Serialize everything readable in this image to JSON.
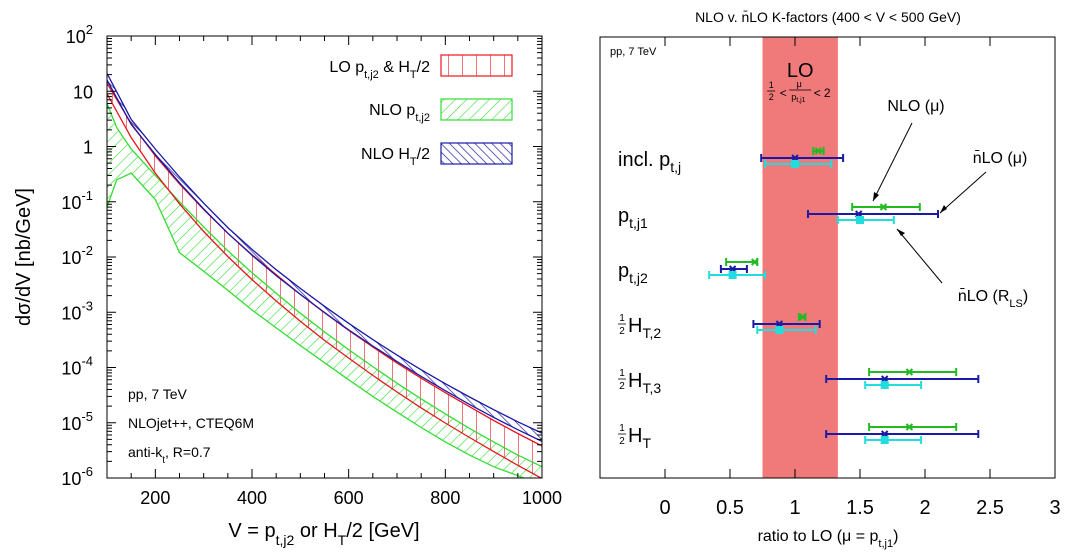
{
  "chart_data": [
    {
      "type": "line",
      "xlabel": "V = p",
      "xlabel_parts": [
        "V = p",
        "t,j2",
        " or H",
        "T",
        "/2 [GeV]"
      ],
      "ylabel": "dσ/dV [nb/GeV]",
      "xlim": [
        100,
        1000
      ],
      "ylim": [
        1e-06,
        100
      ],
      "y_log_scale": true,
      "x_ticks": [
        "200",
        "400",
        "600",
        "800",
        "1000"
      ],
      "y_ticks": [
        {
          "base": "10",
          "exp": "2"
        },
        {
          "base": "10",
          "exp": ""
        },
        {
          "base": "1",
          "exp": ""
        },
        {
          "base": "10",
          "exp": "-1"
        },
        {
          "base": "10",
          "exp": "-2"
        },
        {
          "base": "10",
          "exp": "-3"
        },
        {
          "base": "10",
          "exp": "-4"
        },
        {
          "base": "10",
          "exp": "-5"
        },
        {
          "base": "10",
          "exp": "-6"
        }
      ],
      "legend": [
        {
          "parts": [
            "LO p",
            "t,j2",
            " & H",
            "T",
            "/2"
          ],
          "color": "#e8161e"
        },
        {
          "parts": [
            "NLO p",
            "t,j2"
          ],
          "color": "#33dd33"
        },
        {
          "parts": [
            "NLO H",
            "T",
            "/2"
          ],
          "color": "#1a1aa6"
        }
      ],
      "annotations": [
        "pp, 7 TeV",
        "NLOjet++, CTEQ6M",
        "anti-k",
        "t",
        ", R=0.7"
      ],
      "series": [
        {
          "name": "LO p_t,j2 & H_T/2",
          "color": "#e8161e",
          "x": [
            100,
            150,
            200,
            250,
            300,
            350,
            400,
            450,
            500,
            550,
            600,
            650,
            700,
            750,
            800,
            850,
            900,
            950,
            1000
          ],
          "upper": [
            14,
            2.6,
            0.68,
            0.21,
            0.072,
            0.027,
            0.011,
            0.0048,
            0.0021,
            0.00098,
            0.00047,
            0.000235,
            0.00012,
            6.4e-05,
            3.5e-05,
            1.95e-05,
            1.1e-05,
            6.4e-06,
            3.8e-06
          ],
          "lower": [
            9,
            1.45,
            0.33,
            0.092,
            0.029,
            0.0102,
            0.0039,
            0.0016,
            0.00069,
            0.00031,
            0.000148,
            7.2e-05,
            3.6e-05,
            1.86e-05,
            9.9e-06,
            5.4e-06,
            3e-06,
            1.7e-06,
            9.8e-07
          ]
        },
        {
          "name": "NLO p_t,j2",
          "color": "#33dd33",
          "x": [
            100,
            120,
            150,
            200,
            250,
            300,
            350,
            400,
            450,
            500,
            550,
            600,
            650,
            700,
            750,
            800,
            850,
            900,
            950,
            1000
          ],
          "upper": [
            6,
            2.2,
            0.9,
            0.3,
            0.1,
            0.035,
            0.013,
            0.0052,
            0.0022,
            0.00096,
            0.00044,
            0.00021,
            0.000104,
            5.2e-05,
            2.7e-05,
            1.45e-05,
            7.9e-06,
            4.5e-06,
            2.6e-06,
            1.6e-06
          ],
          "lower": [
            0.08,
            0.25,
            0.33,
            0.11,
            0.012,
            0.0055,
            0.0025,
            0.0011,
            0.00052,
            0.00025,
            0.000122,
            6e-05,
            3e-05,
            1.55e-05,
            8.2e-06,
            4.5e-06,
            2.6e-06,
            1.6e-06,
            1.1e-06,
            7.5e-07
          ]
        },
        {
          "name": "NLO H_T/2",
          "color": "#1a1aa6",
          "x": [
            100,
            150,
            200,
            250,
            300,
            350,
            400,
            450,
            500,
            550,
            600,
            650,
            700,
            750,
            800,
            850,
            900,
            950,
            1000
          ],
          "upper": [
            21,
            3.1,
            0.9,
            0.28,
            0.094,
            0.034,
            0.0137,
            0.0059,
            0.0027,
            0.00128,
            0.00063,
            0.00032,
            0.000168,
            9.1e-05,
            5.1e-05,
            2.92e-05,
            1.72e-05,
            1.04e-05,
            6.5e-06
          ],
          "lower": [
            16,
            2.5,
            0.72,
            0.22,
            0.074,
            0.027,
            0.0108,
            0.0046,
            0.0021,
            0.00099,
            0.00048,
            0.000245,
            0.000128,
            6.9e-05,
            3.8e-05,
            2.15e-05,
            1.25e-05,
            7.5e-06,
            4.6e-06
          ]
        }
      ]
    },
    {
      "type": "scatter",
      "title": "NLO v. n̄LO K-factors (400 < V < 500 GeV)",
      "xlabel": "ratio to LO (μ = p",
      "xlabel_parts": [
        "ratio to LO (μ = p",
        "t,j1",
        ")"
      ],
      "xlim": [
        -0.5,
        3
      ],
      "x_ticks": [
        0,
        0.5,
        1,
        1.5,
        2,
        2.5,
        3
      ],
      "x_tick_labels": [
        "0",
        "0.5",
        "1",
        "1.5",
        "2",
        "2.5",
        "3"
      ],
      "band": {
        "label": "LO",
        "range": [
          0.75,
          1.33
        ],
        "color": "#f07a7a",
        "scale_text": [
          "1",
          "2",
          "μ",
          "p",
          "t,j1",
          "2"
        ]
      },
      "corner_label": "pp, 7 TeV",
      "observables": [
        {
          "main": "incl. p",
          "sub": "t,j",
          "frac": ""
        },
        {
          "main": "p",
          "sub": "t,j1",
          "frac": ""
        },
        {
          "main": "p",
          "sub": "t,j2",
          "frac": ""
        },
        {
          "main": "H",
          "sub": "T,2",
          "frac": "1/2"
        },
        {
          "main": "H",
          "sub": "T,3",
          "frac": "1/2"
        },
        {
          "main": "H",
          "sub": "T",
          "frac": "1/2"
        }
      ],
      "series": [
        {
          "name": "NLO (μ)",
          "color": "#22bb22",
          "marker": "x",
          "points": [
            {
              "obs": 0,
              "x": 1.18,
              "lo": 1.14,
              "hi": 1.22
            },
            {
              "obs": 1,
              "x": 1.68,
              "lo": 1.44,
              "hi": 1.96
            },
            {
              "obs": 2,
              "x": 0.69,
              "lo": 0.47,
              "hi": 0.71
            },
            {
              "obs": 3,
              "x": 1.06,
              "lo": 1.03,
              "hi": 1.08
            },
            {
              "obs": 4,
              "x": 1.88,
              "lo": 1.57,
              "hi": 2.24
            },
            {
              "obs": 5,
              "x": 1.88,
              "lo": 1.57,
              "hi": 2.24
            }
          ]
        },
        {
          "name": "n̄LO (μ)",
          "color": "#1a1aa6",
          "marker": "x",
          "points": [
            {
              "obs": 0,
              "x": 1.0,
              "lo": 0.74,
              "hi": 1.37
            },
            {
              "obs": 1,
              "x": 1.49,
              "lo": 1.1,
              "hi": 2.1
            },
            {
              "obs": 2,
              "x": 0.52,
              "lo": 0.43,
              "hi": 0.63
            },
            {
              "obs": 3,
              "x": 0.88,
              "lo": 0.68,
              "hi": 1.19
            },
            {
              "obs": 4,
              "x": 1.69,
              "lo": 1.24,
              "hi": 2.41
            },
            {
              "obs": 5,
              "x": 1.69,
              "lo": 1.24,
              "hi": 2.41
            }
          ]
        },
        {
          "name": "n̄LO (R_LS)",
          "color": "#22dddd",
          "marker": "square",
          "points": [
            {
              "obs": 0,
              "x": 1.0,
              "lo": 0.77,
              "hi": 1.28
            },
            {
              "obs": 1,
              "x": 1.5,
              "lo": 1.33,
              "hi": 1.76
            },
            {
              "obs": 2,
              "x": 0.52,
              "lo": 0.34,
              "hi": 0.77
            },
            {
              "obs": 3,
              "x": 0.88,
              "lo": 0.71,
              "hi": 1.16
            },
            {
              "obs": 4,
              "x": 1.69,
              "lo": 1.54,
              "hi": 1.97
            },
            {
              "obs": 5,
              "x": 1.69,
              "lo": 1.54,
              "hi": 1.97
            }
          ]
        }
      ],
      "annotations": [
        {
          "parts": [
            "NLO (μ)"
          ]
        },
        {
          "parts": [
            "n̄LO (μ)"
          ]
        },
        {
          "parts": [
            "n̄LO (R",
            "LS",
            ")"
          ]
        }
      ]
    }
  ]
}
